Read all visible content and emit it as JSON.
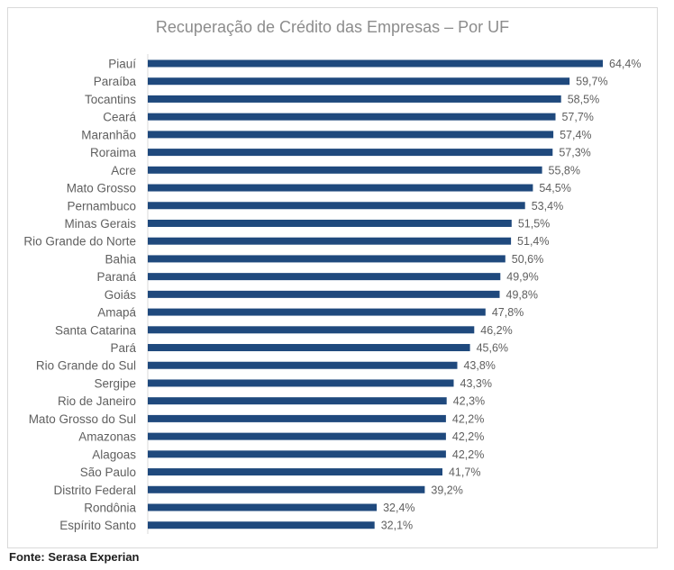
{
  "chart_data": {
    "type": "bar",
    "orientation": "horizontal",
    "title": "Recuperação de Crédito das Empresas – Por UF",
    "categories": [
      "Piauí",
      "Paraíba",
      "Tocantins",
      "Ceará",
      "Maranhão",
      "Roraima",
      "Acre",
      "Mato Grosso",
      "Pernambuco",
      "Minas Gerais",
      "Rio Grande do Norte",
      "Bahia",
      "Paraná",
      "Goiás",
      "Amapá",
      "Santa Catarina",
      "Pará",
      "Rio Grande do Sul",
      "Sergipe",
      "Rio de Janeiro",
      "Mato Grosso do Sul",
      "Amazonas",
      "Alagoas",
      "São Paulo",
      "Distrito Federal",
      "Rondônia",
      "Espírito Santo"
    ],
    "values": [
      64.4,
      59.7,
      58.5,
      57.7,
      57.4,
      57.3,
      55.8,
      54.5,
      53.4,
      51.5,
      51.4,
      50.6,
      49.9,
      49.8,
      47.8,
      46.2,
      45.6,
      43.8,
      43.3,
      42.3,
      42.2,
      42.2,
      42.2,
      41.7,
      39.2,
      32.4,
      32.1
    ],
    "value_labels": [
      "64,4%",
      "59,7%",
      "58,5%",
      "57,7%",
      "57,4%",
      "57,3%",
      "55,8%",
      "54,5%",
      "53,4%",
      "51,5%",
      "51,4%",
      "50,6%",
      "49,9%",
      "49,8%",
      "47,8%",
      "46,2%",
      "45,6%",
      "43,8%",
      "43,3%",
      "42,3%",
      "42,2%",
      "42,2%",
      "42,2%",
      "41,7%",
      "39,2%",
      "32,4%",
      "32,1%"
    ],
    "xlim": [
      0,
      64.4
    ],
    "grid": false,
    "bar_color": "#1f497d"
  },
  "source_note": "Fonte: Serasa Experian"
}
